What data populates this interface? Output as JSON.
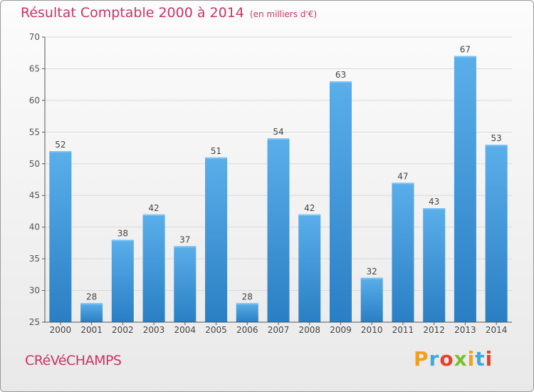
{
  "title": "Résultat Comptable 2000 à 2014",
  "title_unit": "(en milliers d'€)",
  "commune": "CRéVéCHAMPS",
  "brand": "Proxiti",
  "colors": {
    "title": "#cc3366",
    "bar_light": "#5aaeea",
    "bar_dark": "#2a7fc4",
    "grid": "#d9d9d9"
  },
  "chart_data": {
    "type": "bar",
    "title": "Résultat Comptable 2000 à 2014",
    "ylabel": "",
    "xlabel": "",
    "categories": [
      "2000",
      "2001",
      "2002",
      "2003",
      "2004",
      "2005",
      "2006",
      "2007",
      "2008",
      "2009",
      "2010",
      "2011",
      "2012",
      "2013",
      "2014"
    ],
    "values": [
      52,
      28,
      38,
      42,
      37,
      51,
      28,
      54,
      42,
      63,
      32,
      47,
      43,
      67,
      53
    ],
    "ylim": [
      25,
      70
    ],
    "yticks": [
      25,
      30,
      35,
      40,
      45,
      50,
      55,
      60,
      65,
      70
    ],
    "grid": true
  }
}
